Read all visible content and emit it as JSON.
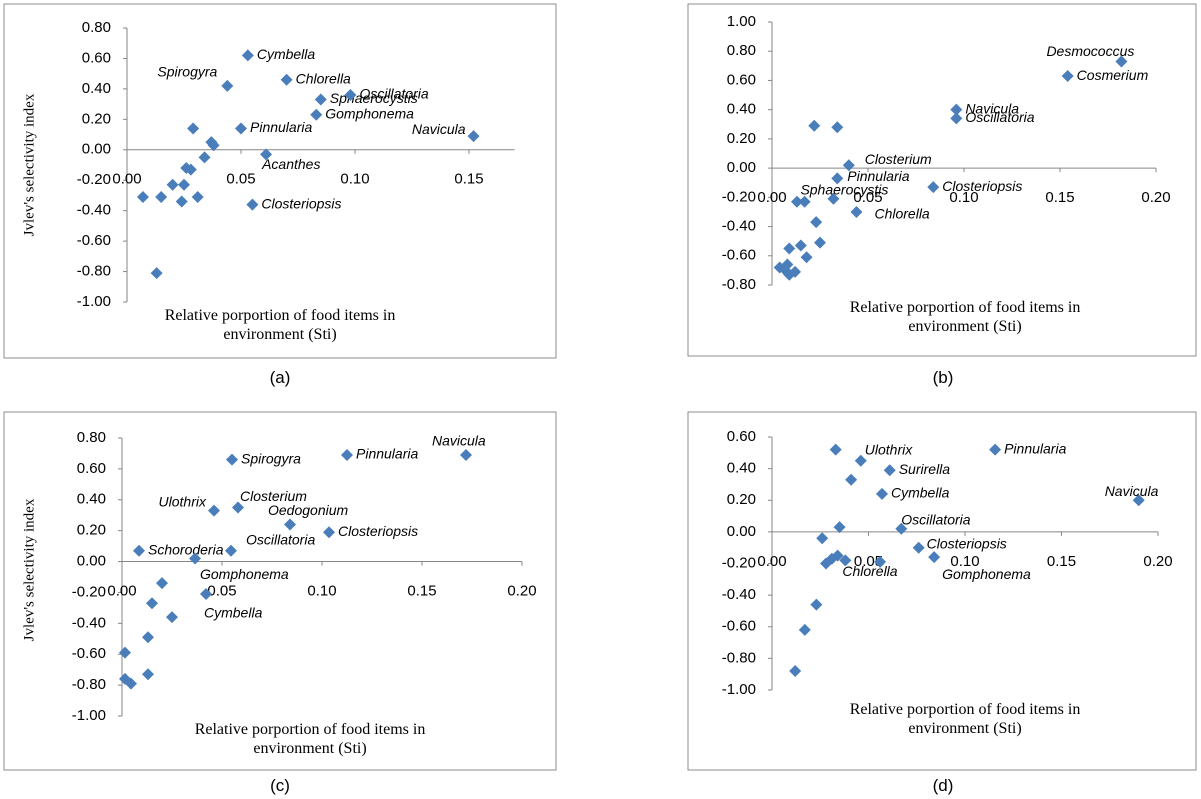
{
  "chart_data": [
    {
      "type": "scatter",
      "caption": "(a)",
      "ylabel": "Jvlev's selectivity index",
      "xlabel": "Relative porportion of food items in environment (Sti)",
      "color": "#4a7ebb",
      "xlim": [
        0,
        0.17
      ],
      "ylim": [
        -1.0,
        0.8
      ],
      "xticks": [
        {
          "value": 0,
          "label": "0.00"
        },
        {
          "value": 0.05,
          "label": "0.05"
        },
        {
          "value": 0.1,
          "label": "0.10"
        },
        {
          "value": 0.15,
          "label": "0.15"
        }
      ],
      "yticks": [
        {
          "value": 0.8,
          "label": "0.80"
        },
        {
          "value": 0.6,
          "label": "0.60"
        },
        {
          "value": 0.4,
          "label": "0.40"
        },
        {
          "value": 0.2,
          "label": "0.20"
        },
        {
          "value": 0,
          "label": "0.00"
        },
        {
          "value": -0.2,
          "label": "-0.20"
        },
        {
          "value": -0.4,
          "label": "-0.40"
        },
        {
          "value": -0.6,
          "label": "-0.60"
        },
        {
          "value": -0.8,
          "label": "-0.80"
        },
        {
          "value": -1.0,
          "label": "-1.00"
        }
      ],
      "x": [
        0.053,
        0.044,
        0.07,
        0.085,
        0.098,
        0.083,
        0.05,
        0.152,
        0.061,
        0.055,
        0.029,
        0.037,
        0.038,
        0.034,
        0.026,
        0.028,
        0.02,
        0.025,
        0.015,
        0.007,
        0.024,
        0.031,
        0.013
      ],
      "y": [
        0.62,
        0.42,
        0.46,
        0.33,
        0.36,
        0.23,
        0.14,
        0.09,
        -0.03,
        -0.36,
        0.14,
        0.05,
        0.03,
        -0.05,
        -0.12,
        -0.13,
        -0.23,
        -0.23,
        -0.31,
        -0.31,
        -0.34,
        -0.31,
        -0.81
      ],
      "labels": [
        "Cymbella",
        "Spirogyra",
        "Chlorella",
        "Sphaerocystis",
        "Oscillatoria",
        "Gomphonema",
        "Pinnularia",
        "Navicula",
        "Acanthes",
        "Closteriopsis",
        null,
        null,
        null,
        null,
        null,
        null,
        null,
        null,
        null,
        null,
        null,
        null,
        null
      ]
    },
    {
      "type": "scatter",
      "caption": "(b)",
      "xlabel": "Relative porportion of food items in environment (Sti)",
      "color": "#4a7ebb",
      "xlim": [
        0,
        0.2
      ],
      "ylim": [
        -0.8,
        1.0
      ],
      "xticks": [
        {
          "value": 0,
          "label": "0.00"
        },
        {
          "value": 0.05,
          "label": "0.05"
        },
        {
          "value": 0.1,
          "label": "0.10"
        },
        {
          "value": 0.15,
          "label": "0.15"
        },
        {
          "value": 0.2,
          "label": "0.20"
        }
      ],
      "yticks": [
        {
          "value": 1.0,
          "label": "1.00"
        },
        {
          "value": 0.8,
          "label": "0.80"
        },
        {
          "value": 0.6,
          "label": "0.60"
        },
        {
          "value": 0.4,
          "label": "0.40"
        },
        {
          "value": 0.2,
          "label": "0.20"
        },
        {
          "value": 0,
          "label": "0.00"
        },
        {
          "value": -0.2,
          "label": "-0.20"
        },
        {
          "value": -0.4,
          "label": "-0.40"
        },
        {
          "value": -0.6,
          "label": "-0.60"
        },
        {
          "value": -0.8,
          "label": "-0.80"
        }
      ],
      "x": [
        0.182,
        0.154,
        0.096,
        0.096,
        0.04,
        0.034,
        0.032,
        0.084,
        0.044,
        0.022,
        0.034,
        0.013,
        0.017,
        0.023,
        0.025,
        0.015,
        0.018,
        0.009,
        0.008,
        0.004,
        0.007,
        0.012,
        0.009
      ],
      "y": [
        0.73,
        0.63,
        0.4,
        0.34,
        0.02,
        -0.07,
        -0.21,
        -0.13,
        -0.3,
        0.29,
        0.28,
        -0.23,
        -0.23,
        -0.37,
        -0.51,
        -0.53,
        -0.61,
        -0.55,
        -0.66,
        -0.68,
        -0.7,
        -0.71,
        -0.73
      ],
      "labels": [
        "Desmococcus",
        "Cosmerium",
        "Navicula",
        "Oscillatoria",
        "Closterium",
        "Pinnularia",
        "Sphaerocystis",
        "Closteriopsis",
        "Chlorella",
        null,
        null,
        null,
        null,
        null,
        null,
        null,
        null,
        null,
        null,
        null,
        null,
        null,
        null
      ]
    },
    {
      "type": "scatter",
      "caption": "(c)",
      "ylabel": "Jvlev's selectivity index",
      "xlabel": "Relative porportion of food items in environment (Sti)",
      "color": "#4a7ebb",
      "xlim": [
        0,
        0.2
      ],
      "ylim": [
        -1.0,
        0.8
      ],
      "xticks": [
        {
          "value": 0,
          "label": "0.00"
        },
        {
          "value": 0.05,
          "label": "0.05"
        },
        {
          "value": 0.1,
          "label": "0.10"
        },
        {
          "value": 0.15,
          "label": "0.15"
        },
        {
          "value": 0.2,
          "label": "0.20"
        }
      ],
      "yticks": [
        {
          "value": 0.8,
          "label": "0.80"
        },
        {
          "value": 0.6,
          "label": "0.60"
        },
        {
          "value": 0.4,
          "label": "0.40"
        },
        {
          "value": 0.2,
          "label": "0.20"
        },
        {
          "value": 0,
          "label": "0.00"
        },
        {
          "value": -0.2,
          "label": "-0.20"
        },
        {
          "value": -0.4,
          "label": "-0.40"
        },
        {
          "value": -0.6,
          "label": "-0.60"
        },
        {
          "value": -0.8,
          "label": "-0.80"
        },
        {
          "value": -1.0,
          "label": "-1.00"
        }
      ],
      "x": [
        0.172,
        0.1125,
        0.055,
        0.058,
        0.046,
        0.084,
        0.1035,
        0.0545,
        0.0085,
        0.0365,
        0.042,
        0.02,
        0.015,
        0.025,
        0.013,
        0.013,
        0.0015,
        0.0015,
        0.0045
      ],
      "y": [
        0.69,
        0.69,
        0.66,
        0.35,
        0.33,
        0.24,
        0.19,
        0.07,
        0.07,
        0.02,
        -0.21,
        -0.14,
        -0.27,
        -0.36,
        -0.49,
        -0.73,
        -0.59,
        -0.76,
        -0.79
      ],
      "labels": [
        "Navicula",
        "Pinnularia",
        "Spirogyra",
        "Closterium",
        "Ulothrix",
        "Oedogonium",
        "Closteriopsis",
        "Oscillatoria",
        "Schoroderia",
        "Gomphonema",
        "Cymbella",
        null,
        null,
        null,
        null,
        null,
        null,
        null,
        null
      ]
    },
    {
      "type": "scatter",
      "caption": "(d)",
      "xlabel": "Relative porportion of food items in environment (Sti)",
      "color": "#4a7ebb",
      "xlim": [
        0,
        0.2
      ],
      "ylim": [
        -1.0,
        0.6
      ],
      "xticks": [
        {
          "value": 0,
          "label": "0.00"
        },
        {
          "value": 0.05,
          "label": "0.05"
        },
        {
          "value": 0.1,
          "label": "0.10"
        },
        {
          "value": 0.15,
          "label": "0.15"
        },
        {
          "value": 0.2,
          "label": "0.20"
        }
      ],
      "yticks": [
        {
          "value": 0.6,
          "label": "0.60"
        },
        {
          "value": 0.4,
          "label": "0.40"
        },
        {
          "value": 0.2,
          "label": "0.20"
        },
        {
          "value": 0,
          "label": "0.00"
        },
        {
          "value": -0.2,
          "label": "-0.20"
        },
        {
          "value": -0.4,
          "label": "-0.40"
        },
        {
          "value": -0.6,
          "label": "-0.60"
        },
        {
          "value": -0.8,
          "label": "-0.80"
        },
        {
          "value": -1.0,
          "label": "-1.00"
        }
      ],
      "x": [
        0.1156,
        0.19,
        0.046,
        0.061,
        0.057,
        0.067,
        0.076,
        0.084,
        0.038,
        0.033,
        0.041,
        0.035,
        0.026,
        0.028,
        0.031,
        0.034,
        0.056,
        0.023,
        0.017,
        0.012
      ],
      "y": [
        0.52,
        0.2,
        0.45,
        0.39,
        0.24,
        0.02,
        -0.1,
        -0.16,
        -0.18,
        0.52,
        0.33,
        0.03,
        -0.04,
        -0.2,
        -0.17,
        -0.15,
        -0.19,
        -0.46,
        -0.62,
        -0.88
      ],
      "labels": [
        "Pinnularia",
        "Navicula",
        "Ulothrix",
        "Surirella",
        "Cymbella",
        "Oscillatoria",
        "Closteriopsis",
        "Gomphonema",
        "Chlorella",
        null,
        null,
        null,
        null,
        null,
        null,
        null,
        null,
        null,
        null,
        null
      ]
    }
  ]
}
